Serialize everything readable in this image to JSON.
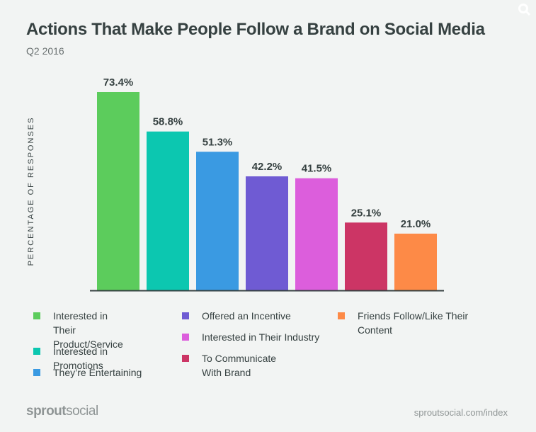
{
  "header": {
    "title": "Actions That Make People Follow a Brand on Social Media",
    "subtitle": "Q2 2016"
  },
  "footer": {
    "logo_bold": "sprout",
    "logo_light": "social",
    "url": "sproutsocial.com/index"
  },
  "chart_data": {
    "type": "bar",
    "title": "Actions That Make People Follow a Brand on Social Media",
    "subtitle": "Q2 2016",
    "ylabel": "PERCENTAGE OF RESPONSES",
    "xlabel": "",
    "ylim": [
      0,
      73.4
    ],
    "grid": false,
    "legend_placement": "bottom",
    "categories": [
      "Interested in Their Product/Service",
      "Interested in Promotions",
      "They’re Entertaining",
      "Offered an Incentive",
      "Interested in Their Industry",
      "To Communicate With Brand",
      "Friends Follow/Like Their Content"
    ],
    "values": [
      73.4,
      58.8,
      51.3,
      42.2,
      41.5,
      25.1,
      21.0
    ],
    "labels": [
      "73.4%",
      "58.8%",
      "51.3%",
      "42.2%",
      "41.5%",
      "25.1%",
      "21.0%"
    ],
    "colors": [
      "#5ccc5c",
      "#0cc7b0",
      "#3a9ae2",
      "#6f5bd3",
      "#dc5edc",
      "#cc3565",
      "#fd8a47"
    ]
  }
}
